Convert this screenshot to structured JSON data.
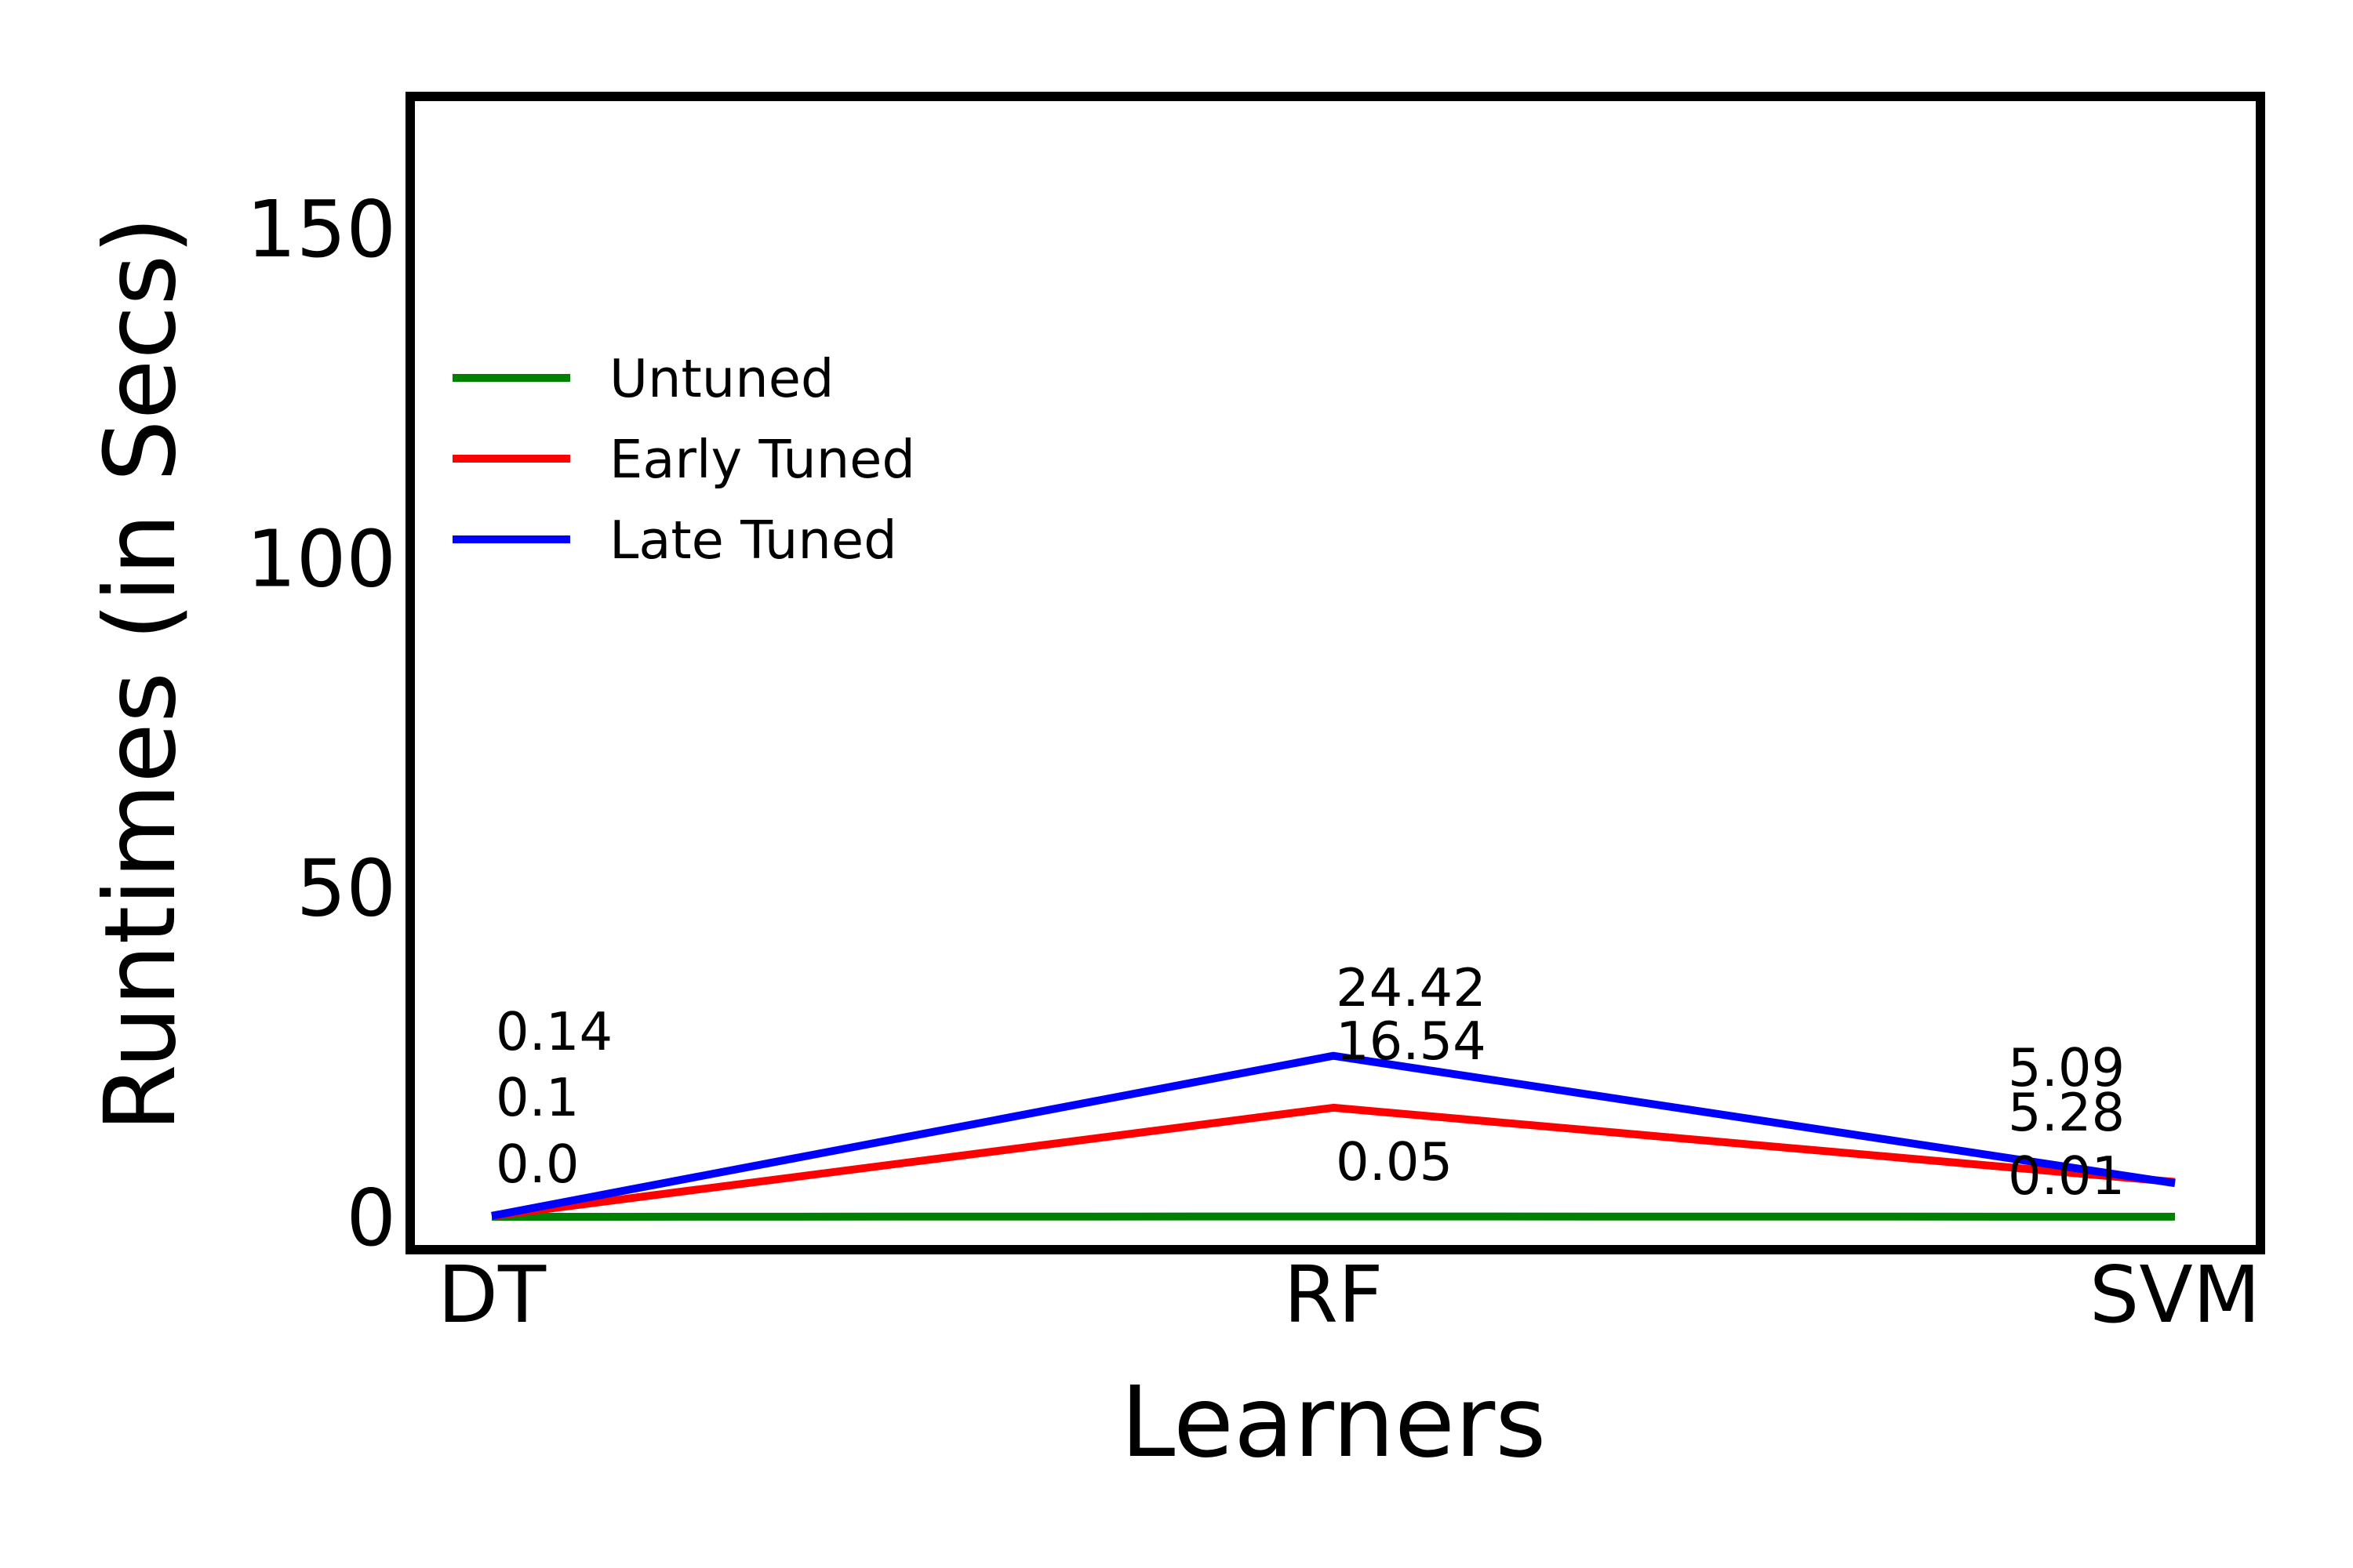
{
  "chart_data": {
    "type": "line",
    "title": "",
    "xlabel": "Learners",
    "ylabel": "Runtimes (in Secs)",
    "categories": [
      "DT",
      "RF",
      "SVM"
    ],
    "ylim": [
      -5,
      170
    ],
    "yticks": [
      0,
      50,
      100,
      150
    ],
    "grid": false,
    "legend_position": "upper-left",
    "series": [
      {
        "name": "Untuned",
        "color": "#008000",
        "values": [
          0.0,
          0.05,
          0.01
        ],
        "labels": [
          "0.0",
          "0.05",
          "0.01"
        ]
      },
      {
        "name": "Early Tuned",
        "color": "#ff0000",
        "values": [
          0.1,
          16.54,
          5.28
        ],
        "labels": [
          "0.1",
          "16.54",
          "5.28"
        ]
      },
      {
        "name": "Late Tuned",
        "color": "#0000ff",
        "values": [
          0.14,
          24.42,
          5.09
        ],
        "labels": [
          "0.14",
          "24.42",
          "5.09"
        ]
      }
    ]
  }
}
